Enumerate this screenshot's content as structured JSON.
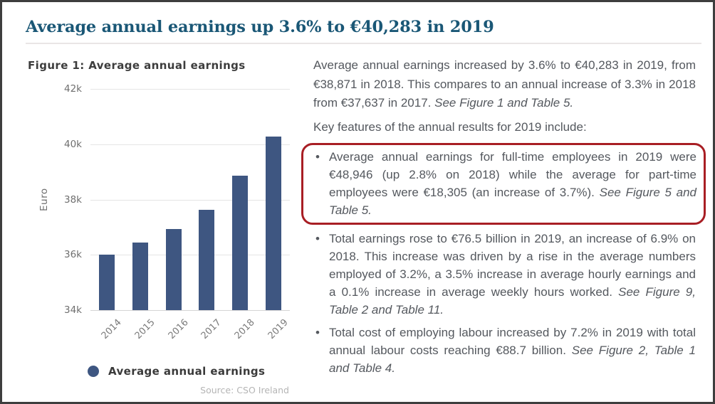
{
  "page": {
    "title": "Average annual earnings up 3.6% to €40,283 in 2019"
  },
  "chart_data": {
    "type": "bar",
    "title": "Figure 1: Average annual earnings",
    "series_name": "Average annual earnings",
    "categories": [
      "2014",
      "2015",
      "2016",
      "2017",
      "2018",
      "2019"
    ],
    "values": [
      36000,
      36450,
      36940,
      37637,
      38871,
      40283
    ],
    "xlabel": "",
    "ylabel": "Euro",
    "ylim": [
      34000,
      42000
    ],
    "yticks": [
      34000,
      36000,
      38000,
      40000,
      42000
    ],
    "ytick_labels": [
      "34k",
      "36k",
      "38k",
      "40k",
      "42k"
    ],
    "grid": true,
    "legend_position": "bottom",
    "bar_color": "#3e5681",
    "source": "Source: CSO Ireland"
  },
  "article": {
    "intro": {
      "text": "Average annual earnings increased by 3.6% to €40,283 in 2019, from €38,871 in 2018. This compares to an annual increase of 3.3% in 2018 from €37,637 in 2017.",
      "see": "See Figure 1 and Table 5."
    },
    "key_features": "Key features of the annual results for 2019 include:",
    "bullets": [
      {
        "text": "Average annual earnings for full-time employees in 2019 were €48,946 (up 2.8% on 2018) while the average for part-time employees were €18,305 (an increase of 3.7%).",
        "see": "See Figure 5 and Table 5.",
        "highlighted": true
      },
      {
        "text": "Total earnings rose to €76.5 billion in 2019, an increase of 6.9% on 2018. This increase was driven by a rise in the average numbers employed of 3.2%, a 3.5% increase in average hourly earnings and a 0.1% increase in average weekly hours worked.",
        "see": "See Figure 9, Table 2 and Table 11.",
        "highlighted": false
      },
      {
        "text": "Total cost of employing labour increased by 7.2% in 2019 with total annual labour costs reaching €88.7 billion.",
        "see": "See Figure 2, Table 1 and Table 4.",
        "highlighted": false
      }
    ]
  },
  "colors": {
    "accent_title": "#1a5776",
    "bar": "#3e5681",
    "highlight_border": "#a81e24",
    "body_text": "#54585e",
    "page_border": "#3e3e3e"
  }
}
